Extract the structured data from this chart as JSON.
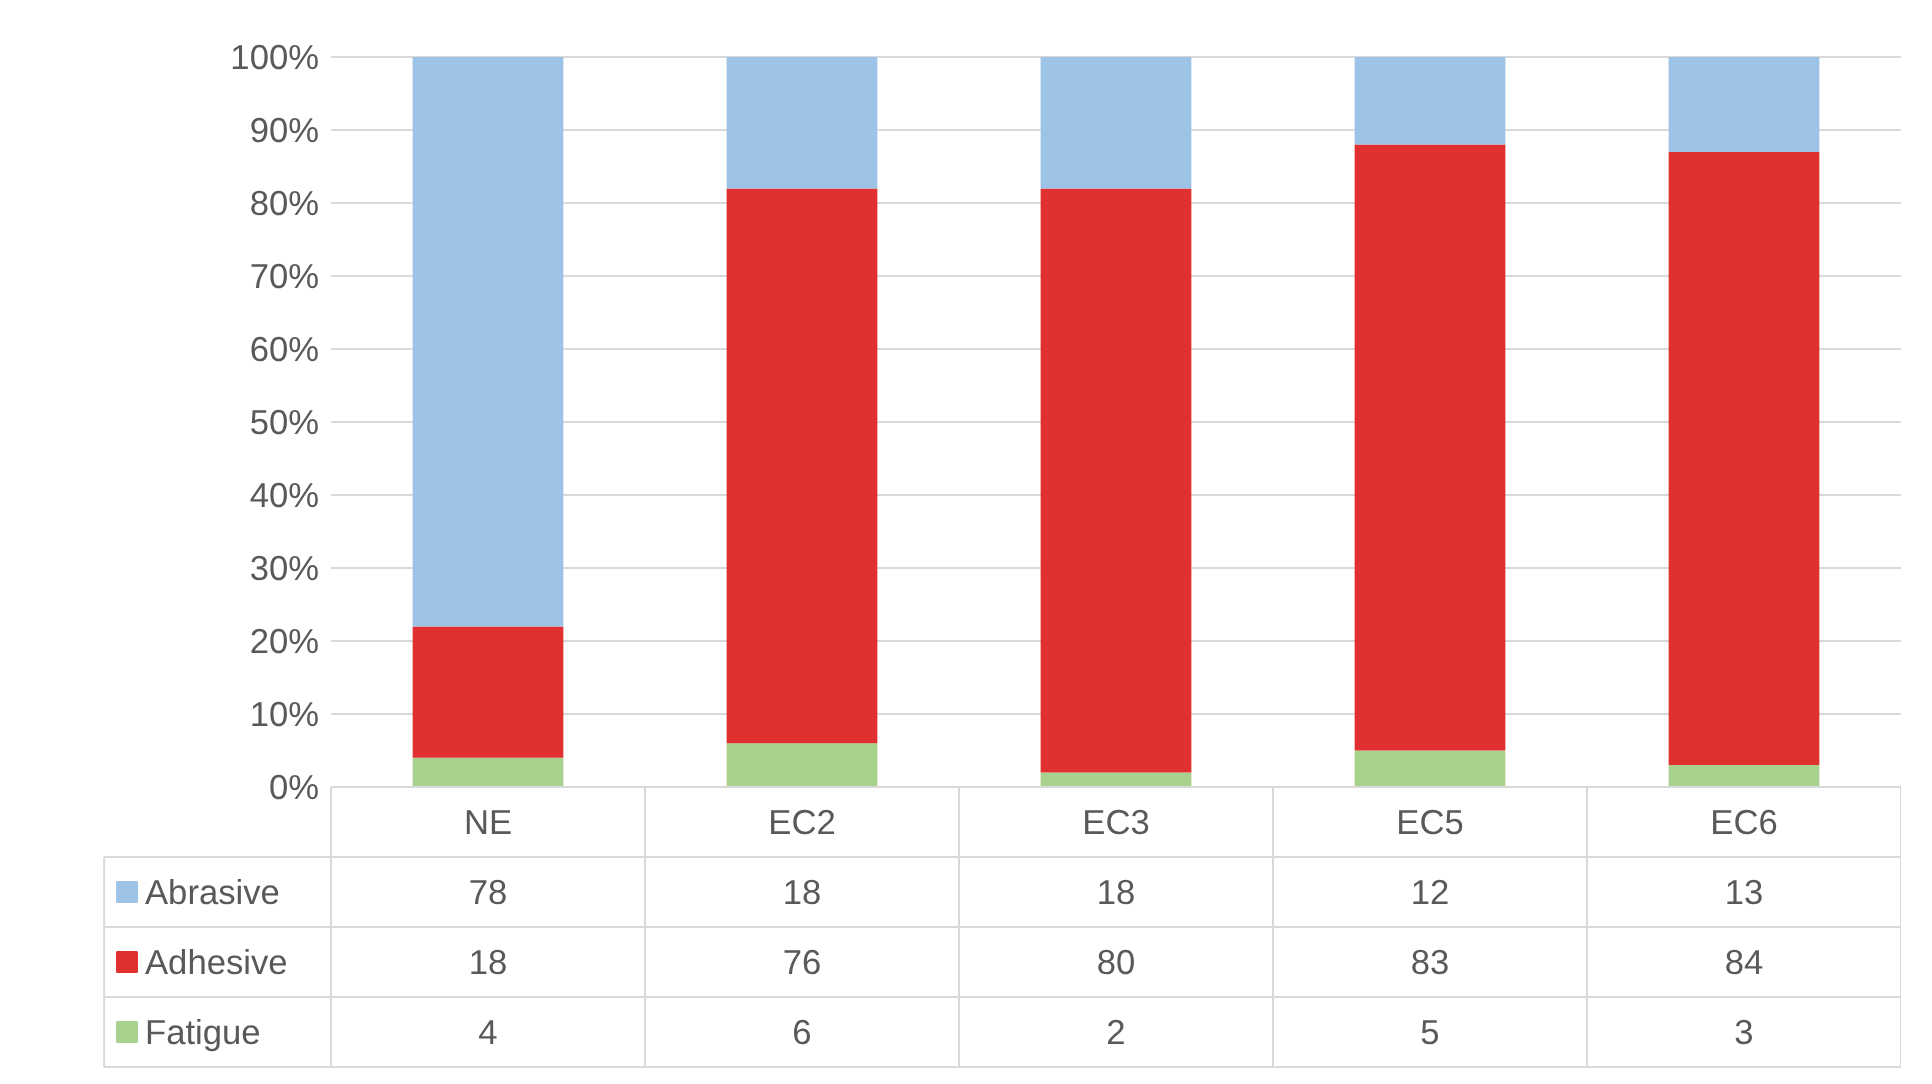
{
  "chart_data": {
    "type": "bar",
    "stacked": true,
    "data_labels": true,
    "legend": "bottom",
    "grid": "y",
    "categories": [
      "NE",
      "EC2",
      "EC3",
      "EC5",
      "EC6"
    ],
    "series": [
      {
        "name": "Fatigue",
        "color": "#a9d18e",
        "values": [
          4,
          6,
          2,
          5,
          3
        ]
      },
      {
        "name": "Adhesive",
        "color": "#e03030",
        "values": [
          18,
          76,
          80,
          83,
          84
        ]
      },
      {
        "name": "Abrasive",
        "color": "#9dc3e6",
        "values": [
          78,
          18,
          18,
          12,
          13
        ]
      }
    ],
    "ylim": [
      0,
      100
    ],
    "yticks": [
      {
        "value": 0,
        "label": "0%"
      },
      {
        "value": 10,
        "label": "10%"
      },
      {
        "value": 20,
        "label": "20%"
      },
      {
        "value": 30,
        "label": "30%"
      },
      {
        "value": 40,
        "label": "40%"
      },
      {
        "value": 50,
        "label": "50%"
      },
      {
        "value": 60,
        "label": "60%"
      },
      {
        "value": 70,
        "label": "70%"
      },
      {
        "value": 80,
        "label": "80%"
      },
      {
        "value": 90,
        "label": "90%"
      },
      {
        "value": 100,
        "label": "100%"
      }
    ]
  }
}
